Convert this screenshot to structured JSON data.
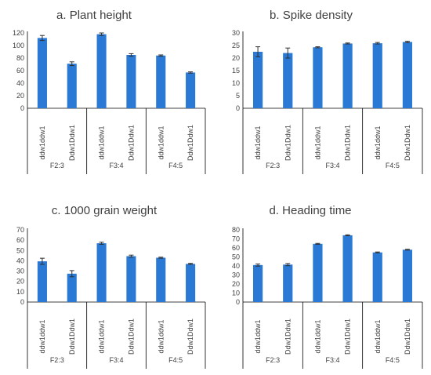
{
  "chart_data": [
    {
      "type": "bar",
      "title": "a. Plant height",
      "categories": [
        "ddw1ddw1",
        "Ddw1Ddw1",
        "ddw1ddw1",
        "Ddw1Ddw1",
        "ddw1ddw1",
        "Ddw1Ddw1"
      ],
      "groups": [
        "F2:3",
        "F3:4",
        "F4:5"
      ],
      "values": [
        112,
        71,
        118,
        85,
        84,
        57
      ],
      "errors": [
        4,
        3,
        2,
        2,
        1,
        1
      ],
      "ylim": [
        0,
        120
      ],
      "yticks": [
        0,
        20,
        40,
        60,
        80,
        100,
        120
      ],
      "xlabel": "",
      "ylabel": ""
    },
    {
      "type": "bar",
      "title": "b. Spike density",
      "categories": [
        "ddw1ddw1",
        "Ddw1Ddw1",
        "ddw1ddw1",
        "Ddw1Ddw1",
        "ddw1ddw1",
        "Ddw1Ddw1"
      ],
      "groups": [
        "F2:3",
        "F3:4",
        "F4:5"
      ],
      "values": [
        22.5,
        22.0,
        24.3,
        25.8,
        25.9,
        26.4
      ],
      "errors": [
        2.0,
        2.0,
        0.2,
        0.2,
        0.3,
        0.3
      ],
      "ylim": [
        0,
        30
      ],
      "yticks": [
        0,
        5,
        10,
        15,
        20,
        25,
        30
      ],
      "xlabel": "",
      "ylabel": ""
    },
    {
      "type": "bar",
      "title": "c. 1000 grain weight",
      "categories": [
        "ddw1ddw1",
        "Ddw1Ddw1",
        "ddw1ddw1",
        "Ddw1Ddw1",
        "ddw1ddw1",
        "Ddw1Ddw1"
      ],
      "groups": [
        "F2:3",
        "F3:4",
        "F4:5"
      ],
      "values": [
        39.5,
        27.5,
        57,
        44.5,
        43,
        37
      ],
      "errors": [
        3.0,
        3.0,
        1.0,
        1.0,
        0.5,
        0.5
      ],
      "ylim": [
        0,
        70
      ],
      "yticks": [
        0,
        10,
        20,
        30,
        40,
        50,
        60,
        70
      ],
      "xlabel": "",
      "ylabel": ""
    },
    {
      "type": "bar",
      "title": "d. Heading time",
      "categories": [
        "ddw1ddw1",
        "Ddw1Ddw1",
        "ddw1ddw1",
        "Ddw1Ddw1",
        "ddw1ddw1",
        "Ddw1Ddw1"
      ],
      "groups": [
        "F2:3",
        "F3:4",
        "F4:5"
      ],
      "values": [
        41,
        41.5,
        64.5,
        74,
        55,
        58
      ],
      "errors": [
        1.2,
        1.2,
        0.5,
        0.5,
        0.5,
        0.5
      ],
      "ylim": [
        0,
        80
      ],
      "yticks": [
        0,
        10,
        20,
        30,
        40,
        50,
        60,
        70,
        80
      ],
      "xlabel": "",
      "ylabel": ""
    }
  ],
  "colors": {
    "bar": "#2a7ad5",
    "error_bar": "#2f2f2f",
    "axis": "#000000",
    "text": "#404040"
  }
}
